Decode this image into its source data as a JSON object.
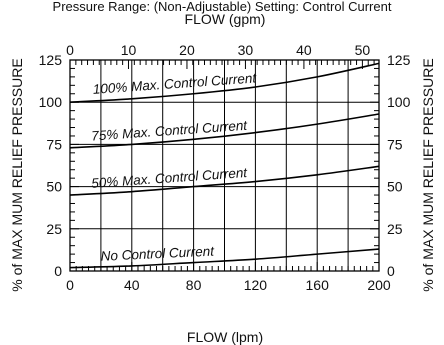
{
  "top_caption": "Pressure Range: (Non-Adjustable) Setting: Control Current",
  "chart_data": {
    "type": "line",
    "xlabel_bottom": "FLOW (lpm)",
    "xlabel_top": "FLOW (gpm)",
    "ylabel_left": "% of MAX MUM RELIEF PRESSURE",
    "ylabel_right": "% of MAX MUM RELIEF PRESSURE",
    "xlim": [
      0,
      200
    ],
    "ylim": [
      0,
      125
    ],
    "x_ticks": [
      0,
      40,
      80,
      120,
      160,
      200
    ],
    "x_tick_labels": [
      "0",
      "40",
      "80",
      "120",
      "160",
      "200"
    ],
    "x_top_ticks": [
      0,
      10,
      20,
      30,
      40,
      50
    ],
    "x_top_tick_labels": [
      "0",
      "10",
      "20",
      "30",
      "40",
      "50"
    ],
    "y_ticks": [
      0,
      25,
      50,
      75,
      100,
      125
    ],
    "y_tick_labels": [
      "0",
      "25",
      "50",
      "75",
      "100",
      "125"
    ],
    "grid": true,
    "series": [
      {
        "name": "100% Max. Control Current",
        "x": [
          0,
          40,
          80,
          120,
          160,
          200
        ],
        "y": [
          100,
          102,
          105,
          109,
          115,
          123
        ]
      },
      {
        "name": "75% Max. Control Current",
        "x": [
          0,
          40,
          80,
          120,
          160,
          200
        ],
        "y": [
          73,
          75,
          78,
          82,
          87,
          93
        ]
      },
      {
        "name": "50% Max. Control Current",
        "x": [
          0,
          40,
          80,
          120,
          160,
          200
        ],
        "y": [
          45,
          47,
          50,
          53,
          57,
          62
        ]
      },
      {
        "name": "No Control Current",
        "x": [
          0,
          40,
          80,
          120,
          160,
          200
        ],
        "y": [
          2,
          3,
          5,
          7,
          10,
          13
        ]
      }
    ]
  }
}
